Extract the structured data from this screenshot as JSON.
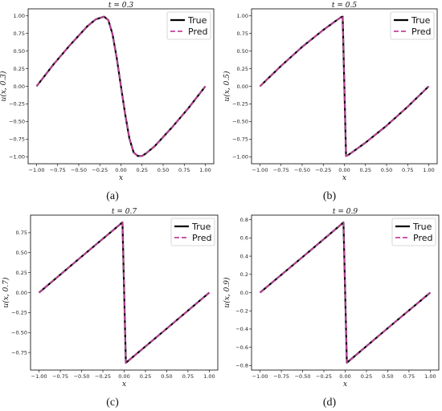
{
  "colors": {
    "true_line": "#000000",
    "pred_line": "#c2409e"
  },
  "chart_data": [
    {
      "type": "line",
      "title": "t = 0.3",
      "xlabel": "x",
      "ylabel": "u(x, 0.3)",
      "caption": "(a)",
      "xlim": [
        -1.1,
        1.1
      ],
      "ylim": [
        -1.1,
        1.1
      ],
      "xticks": [
        -1.0,
        -0.75,
        -0.5,
        -0.25,
        0.0,
        0.25,
        0.5,
        0.75,
        1.0
      ],
      "xtick_labels": [
        "−1.00",
        "−0.75",
        "−0.50",
        "−0.25",
        "0.00",
        "0.25",
        "0.50",
        "0.75",
        "1.00"
      ],
      "yticks": [
        -1.0,
        -0.75,
        -0.5,
        -0.25,
        0.0,
        0.25,
        0.5,
        0.75,
        1.0
      ],
      "ytick_labels": [
        "−1.00",
        "−0.75",
        "−0.50",
        "−0.25",
        "0.00",
        "0.25",
        "0.50",
        "0.75",
        "1.00"
      ],
      "legend_position": "top-right",
      "series": [
        {
          "name": "True",
          "style": "solid",
          "x": [
            -1.0,
            -0.8,
            -0.6,
            -0.4,
            -0.3,
            -0.2,
            -0.15,
            -0.1,
            -0.05,
            0.0,
            0.05,
            0.1,
            0.15,
            0.2,
            0.25,
            0.3,
            0.4,
            0.6,
            0.8,
            1.0
          ],
          "y": [
            0.0,
            0.31,
            0.59,
            0.85,
            0.95,
            0.99,
            0.94,
            0.74,
            0.4,
            0.0,
            -0.4,
            -0.74,
            -0.94,
            -0.99,
            -0.99,
            -0.95,
            -0.85,
            -0.59,
            -0.31,
            0.0
          ]
        },
        {
          "name": "Pred",
          "style": "dashed",
          "x": [
            -1.0,
            -0.8,
            -0.6,
            -0.4,
            -0.3,
            -0.2,
            -0.15,
            -0.1,
            -0.05,
            0.0,
            0.05,
            0.1,
            0.15,
            0.2,
            0.25,
            0.3,
            0.4,
            0.6,
            0.8,
            1.0
          ],
          "y": [
            0.0,
            0.31,
            0.59,
            0.85,
            0.95,
            0.99,
            0.94,
            0.74,
            0.4,
            0.0,
            -0.4,
            -0.74,
            -0.94,
            -0.99,
            -0.99,
            -0.95,
            -0.85,
            -0.59,
            -0.31,
            0.0
          ]
        }
      ]
    },
    {
      "type": "line",
      "title": "t = 0.5",
      "xlabel": "x",
      "ylabel": "u(x, 0.5)",
      "caption": "(b)",
      "xlim": [
        -1.1,
        1.1
      ],
      "ylim": [
        -1.1,
        1.1
      ],
      "xticks": [
        -1.0,
        -0.75,
        -0.5,
        -0.25,
        0.0,
        0.25,
        0.5,
        0.75,
        1.0
      ],
      "xtick_labels": [
        "−1.00",
        "−0.75",
        "−0.50",
        "−0.25",
        "0.00",
        "0.25",
        "0.50",
        "0.75",
        "1.00"
      ],
      "yticks": [
        -1.0,
        -0.75,
        -0.5,
        -0.25,
        0.0,
        0.25,
        0.5,
        0.75,
        1.0
      ],
      "ytick_labels": [
        "−1.00",
        "−0.75",
        "−0.50",
        "−0.25",
        "0.00",
        "0.25",
        "0.50",
        "0.75",
        "1.00"
      ],
      "legend_position": "top-right",
      "series": [
        {
          "name": "True",
          "style": "solid",
          "x": [
            -1.0,
            -0.75,
            -0.5,
            -0.25,
            -0.1,
            -0.04,
            -0.02,
            0.0,
            0.02,
            0.04,
            0.1,
            0.25,
            0.5,
            0.75,
            1.0
          ],
          "y": [
            0.0,
            0.29,
            0.56,
            0.8,
            0.93,
            0.98,
            0.99,
            0.0,
            -0.99,
            -0.98,
            -0.93,
            -0.8,
            -0.56,
            -0.29,
            0.0
          ]
        },
        {
          "name": "Pred",
          "style": "dashed",
          "x": [
            -1.0,
            -0.75,
            -0.5,
            -0.25,
            -0.1,
            -0.04,
            -0.02,
            0.0,
            0.02,
            0.04,
            0.1,
            0.25,
            0.5,
            0.75,
            1.0
          ],
          "y": [
            0.0,
            0.29,
            0.56,
            0.8,
            0.93,
            0.98,
            0.99,
            0.0,
            -0.99,
            -0.98,
            -0.93,
            -0.8,
            -0.56,
            -0.29,
            0.0
          ]
        }
      ]
    },
    {
      "type": "line",
      "title": "t = 0.7",
      "xlabel": "x",
      "ylabel": "u(x, 0.7)",
      "caption": "(c)",
      "xlim": [
        -1.1,
        1.1
      ],
      "ylim": [
        -0.97,
        0.97
      ],
      "xticks": [
        -1.0,
        -0.75,
        -0.5,
        -0.25,
        0.0,
        0.25,
        0.5,
        0.75,
        1.0
      ],
      "xtick_labels": [
        "−1.00",
        "−0.75",
        "−0.50",
        "−0.25",
        "0.00",
        "0.25",
        "0.50",
        "0.75",
        "1.00"
      ],
      "yticks": [
        -0.75,
        -0.5,
        -0.25,
        0.0,
        0.25,
        0.5,
        0.75
      ],
      "ytick_labels": [
        "−0.75",
        "−0.50",
        "−0.25",
        "0.00",
        "0.25",
        "0.50",
        "0.75"
      ],
      "legend_position": "top-right",
      "series": [
        {
          "name": "True",
          "style": "solid",
          "x": [
            -1.0,
            -0.5,
            -0.02,
            0.0,
            0.02,
            0.5,
            1.0
          ],
          "y": [
            0.0,
            0.45,
            0.88,
            0.0,
            -0.88,
            -0.45,
            0.0
          ]
        },
        {
          "name": "Pred",
          "style": "dashed",
          "x": [
            -1.0,
            -0.5,
            -0.02,
            0.0,
            0.02,
            0.5,
            1.0
          ],
          "y": [
            0.0,
            0.45,
            0.88,
            0.0,
            -0.88,
            -0.45,
            0.0
          ]
        }
      ]
    },
    {
      "type": "line",
      "title": "t = 0.9",
      "xlabel": "x",
      "ylabel": "u(x, 0.9)",
      "caption": "(d)",
      "xlim": [
        -1.1,
        1.1
      ],
      "ylim": [
        -0.85,
        0.85
      ],
      "xticks": [
        -1.0,
        -0.75,
        -0.5,
        -0.25,
        0.0,
        0.25,
        0.5,
        0.75,
        1.0
      ],
      "xtick_labels": [
        "−1.00",
        "−0.75",
        "−0.50",
        "−0.25",
        "0.00",
        "0.25",
        "0.50",
        "0.75",
        "1.00"
      ],
      "yticks": [
        -0.8,
        -0.6,
        -0.4,
        -0.2,
        0.0,
        0.2,
        0.4,
        0.6,
        0.8
      ],
      "ytick_labels": [
        "−0.8",
        "−0.6",
        "−0.4",
        "−0.2",
        "0.0",
        "0.2",
        "0.4",
        "0.6",
        "0.8"
      ],
      "legend_position": "top-right",
      "series": [
        {
          "name": "True",
          "style": "solid",
          "x": [
            -1.0,
            -0.5,
            -0.02,
            0.0,
            0.02,
            0.5,
            1.0
          ],
          "y": [
            0.0,
            0.39,
            0.77,
            0.0,
            -0.77,
            -0.39,
            0.0
          ]
        },
        {
          "name": "Pred",
          "style": "dashed",
          "x": [
            -1.0,
            -0.5,
            -0.02,
            0.0,
            0.02,
            0.5,
            1.0
          ],
          "y": [
            0.0,
            0.39,
            0.77,
            0.0,
            -0.77,
            -0.39,
            0.0
          ]
        }
      ]
    }
  ]
}
